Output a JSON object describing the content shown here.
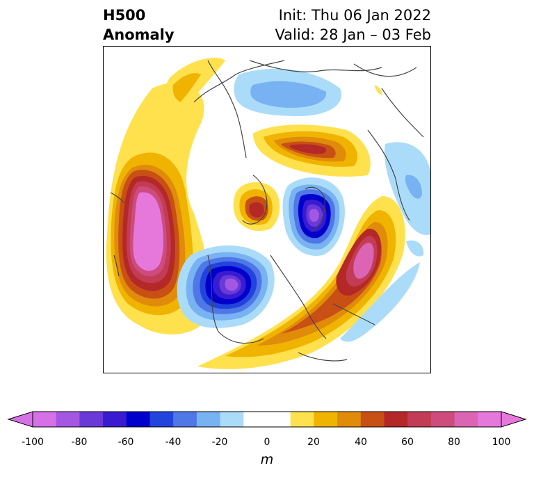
{
  "header": {
    "title_line1": "H500",
    "title_line2": "Anomaly",
    "init_text": "Init: Thu 06 Jan 2022",
    "valid_text": "Valid: 28 Jan – 03 Feb"
  },
  "colorbar": {
    "unit": "m",
    "min": -100,
    "max": 100,
    "tick_labels": [
      "-100",
      "-80",
      "-60",
      "-40",
      "-20",
      "0",
      "20",
      "40",
      "60",
      "80",
      "100"
    ],
    "colors": [
      "#d670e6",
      "#a457e2",
      "#6a3ad8",
      "#3a1cd0",
      "#0000cc",
      "#2244dd",
      "#4f78e6",
      "#78b2f2",
      "#aadcfa",
      "#ffffff",
      "#ffffff",
      "#ffe14d",
      "#f0b400",
      "#e08c0a",
      "#c85014",
      "#b42828",
      "#c33c55",
      "#cd4c7d",
      "#dc64b4",
      "#e678dc"
    ]
  },
  "map": {
    "description_colors": {
      "neg_light": "#aadcfa",
      "neg_mid": "#78b2f2",
      "neg_strong": "#0000cc",
      "pos_light": "#ffe14d",
      "pos_mid": "#f0b400",
      "pos_strong": "#b42828",
      "pos_extreme": "#e678dc"
    }
  }
}
